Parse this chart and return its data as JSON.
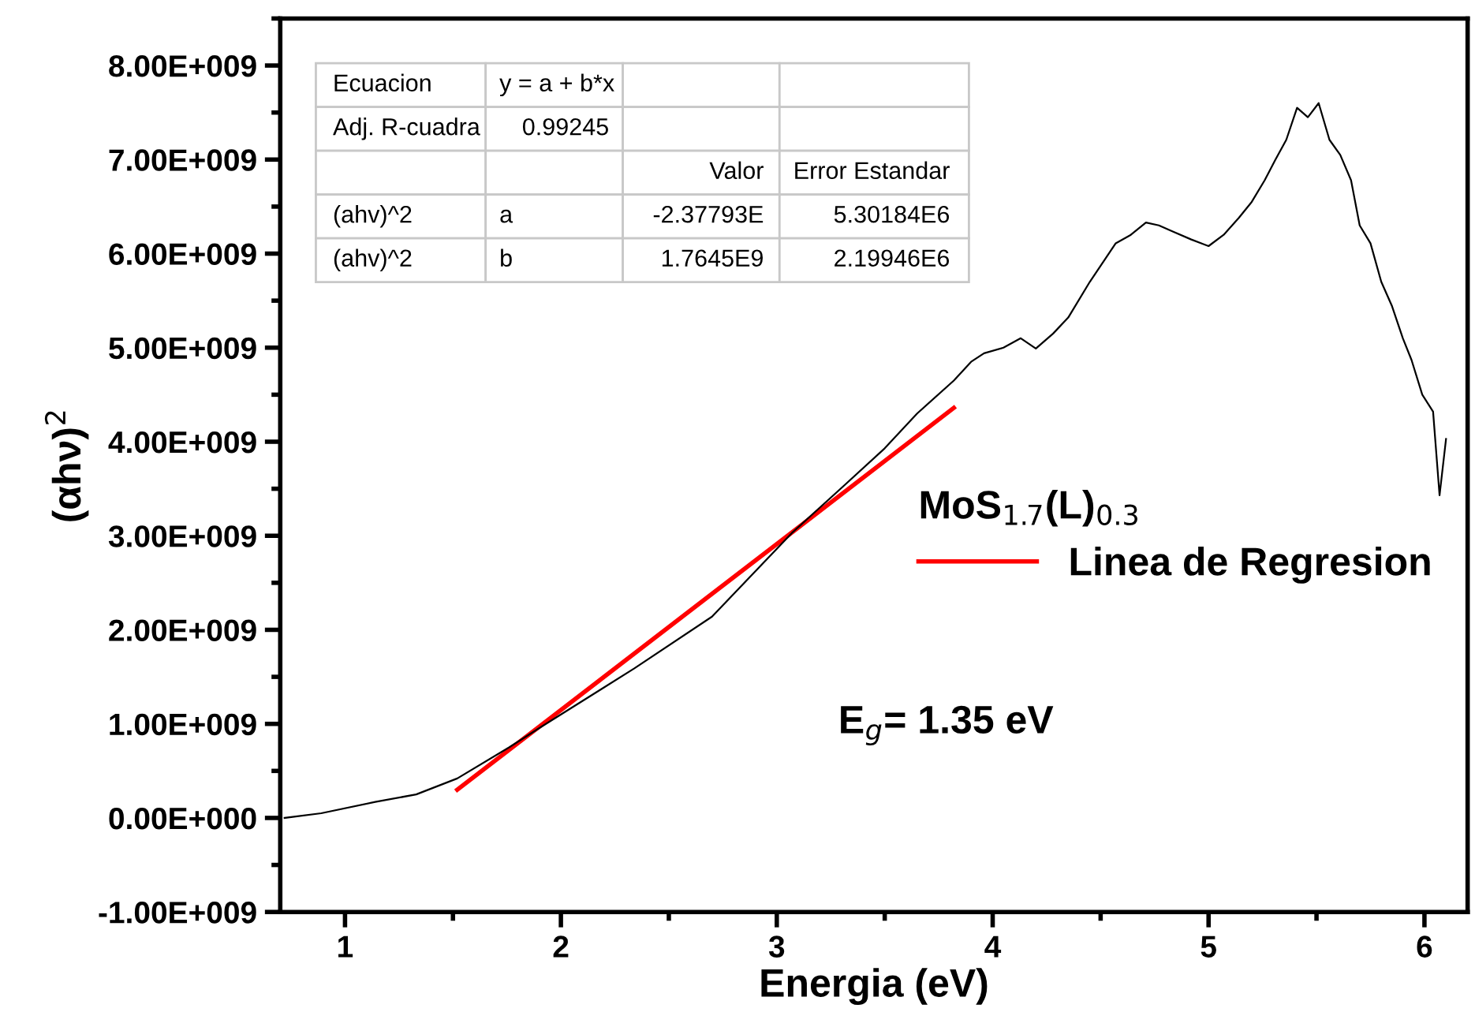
{
  "chart_data": {
    "type": "line",
    "xlabel": "Energia (eV)",
    "ylabel": "(αhν)$^{2}$",
    "legend_title": "MoS$_{1.7}$(L)$_{0.3}$",
    "legend": "right",
    "grid": false,
    "xlim": [
      0.7,
      6.2
    ],
    "xticks": [
      1,
      2,
      3,
      4,
      5,
      6
    ],
    "ylim": [
      -1000000000,
      8500000000
    ],
    "yticks": [
      {
        "value": -1000000000,
        "label": "-1.00E+009"
      },
      {
        "value": 0,
        "label": "0.00E+000"
      },
      {
        "value": 1000000000,
        "label": "1.00E+009"
      },
      {
        "value": 2000000000,
        "label": "2.00E+009"
      },
      {
        "value": 3000000000,
        "label": "3.00E+009"
      },
      {
        "value": 4000000000,
        "label": "4.00E+009"
      },
      {
        "value": 5000000000,
        "label": "5.00E+009"
      },
      {
        "value": 6000000000,
        "label": "6.00E+009"
      },
      {
        "value": 7000000000,
        "label": "7.00E+009"
      },
      {
        "value": 8000000000,
        "label": "8.00E+009"
      }
    ],
    "series": [
      {
        "color": "#000000",
        "x": [
          0.72,
          0.89,
          1.14,
          1.33,
          1.52,
          1.76,
          1.91,
          2.34,
          2.7,
          3.07,
          3.31,
          3.5,
          3.65,
          3.82,
          3.9,
          3.96,
          4.05,
          4.13,
          4.2,
          4.28,
          4.35,
          4.45,
          4.57,
          4.64,
          4.71,
          4.77,
          4.83,
          4.92,
          5.0,
          5.07,
          5.14,
          5.2,
          5.26,
          5.31,
          5.36,
          5.41,
          5.46,
          5.51,
          5.56,
          5.61,
          5.66,
          5.7,
          5.75,
          5.8,
          5.85,
          5.9,
          5.94,
          5.99,
          6.04,
          6.07,
          6.1
        ],
        "values": [
          0,
          50000000,
          170000000,
          250000000,
          420000000,
          750000000,
          970000000,
          1590000000,
          2140000000,
          3030000000,
          3530000000,
          3930000000,
          4300000000,
          4650000000,
          4850000000,
          4940000000,
          5000000000,
          5100000000,
          4990000000,
          5150000000,
          5320000000,
          5700000000,
          6110000000,
          6200000000,
          6330000000,
          6300000000,
          6240000000,
          6150000000,
          6080000000,
          6200000000,
          6380000000,
          6550000000,
          6780000000,
          7000000000,
          7210000000,
          7550000000,
          7450000000,
          7600000000,
          7210000000,
          7050000000,
          6780000000,
          6300000000,
          6110000000,
          5700000000,
          5440000000,
          5100000000,
          4870000000,
          4500000000,
          4320000000,
          3430000000,
          4030000000
        ]
      },
      {
        "name": "Linea de Regresion",
        "color": "#ff0000",
        "x": [
          1.52,
          3.82
        ],
        "values": [
          300000000,
          4360000000
        ]
      }
    ],
    "annotations": [
      "Ecuacion\ty = a + b*x\t\t",
      "Adj. R-cuadra\t0.99245\t\t",
      "\t\tValor\tError Estandar",
      "(ahv)^2\ta\t-2.37793E\t5.30184E6",
      "(ahv)^2\tb\t1.7645E9\t2.19946E6",
      "E$_{g}$= 1.35 eV"
    ]
  }
}
